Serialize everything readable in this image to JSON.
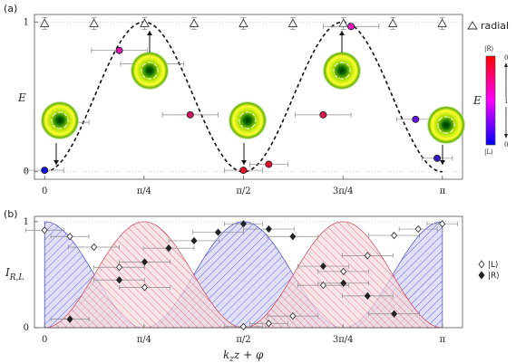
{
  "chart_data": [
    {
      "type": "scatter",
      "panel_label": "(a)",
      "ylabel": "E",
      "xlim": [
        -0.08,
        3.3
      ],
      "ylim": [
        -0.05,
        1.05
      ],
      "x_tick_values": [
        0,
        0.7854,
        1.5708,
        2.3562,
        3.1416
      ],
      "x_tick_labels": [
        "0",
        "π/4",
        "π/2",
        "3π/4",
        "π"
      ],
      "y_tick_values": [
        0,
        1
      ],
      "y_tick_labels": [
        "0",
        "1"
      ],
      "reference_lines": [
        0,
        1
      ],
      "radial_legend_label": "radial",
      "radial_points": {
        "x": [
          0,
          0.39,
          0.79,
          1.18,
          1.57,
          1.96,
          2.36,
          2.75,
          3.14
        ],
        "y": [
          0.99,
          0.99,
          0.99,
          0.99,
          0.99,
          0.99,
          0.99,
          0.99,
          0.99
        ],
        "yerr": [
          0.04,
          0.04,
          0.04,
          0.04,
          0.04,
          0.04,
          0.04,
          0.04,
          0.04
        ]
      },
      "curve_label": "sin²(2(k_z z + φ))",
      "measured_points": {
        "x": [
          0,
          0.2,
          0.59,
          0.85,
          1.15,
          1.57,
          1.77,
          2.2,
          2.42,
          2.93,
          3.1
        ],
        "y": [
          0.01,
          0.33,
          0.81,
          0.72,
          0.38,
          0.01,
          0.05,
          0.38,
          0.97,
          0.35,
          0.09
        ],
        "xerr": [
          0.15,
          0.15,
          0.22,
          0.25,
          0.22,
          0.15,
          0.15,
          0.22,
          0.22,
          0.15,
          0.12
        ],
        "colors": [
          "#1515d8",
          "#5a10c8",
          "#d215a8",
          "#a81ed8",
          "#d21560",
          "#e2102a",
          "#dd1030",
          "#d81545",
          "#e615c0",
          "#6010d8",
          "#3818c8"
        ]
      },
      "colorbar": {
        "label": "E",
        "ticks": [
          "0",
          "1",
          "0"
        ],
        "top_label": "|R⟩",
        "bottom_label": "|L⟩"
      }
    },
    {
      "type": "scatter",
      "panel_label": "(b)",
      "xlabel": "k_z z + φ",
      "ylabel": "I_{R,L}",
      "xlim": [
        -0.08,
        3.3
      ],
      "ylim": [
        0,
        1.05
      ],
      "x_tick_values": [
        0,
        0.7854,
        1.5708,
        2.3562,
        3.1416
      ],
      "x_tick_labels": [
        "0",
        "π/4",
        "π/2",
        "3π/4",
        "π"
      ],
      "y_tick_values": [
        0,
        1
      ],
      "y_tick_labels": [
        "0",
        "1"
      ],
      "legend": [
        "|L⟩",
        "|R⟩"
      ],
      "series": [
        {
          "name": "|L⟩",
          "marker": "open-diamond",
          "x": [
            0,
            0.2,
            0.39,
            0.59,
            0.79,
            1.57,
            1.77,
            1.96,
            2.2,
            2.36,
            2.55,
            2.76,
            2.95,
            3.14
          ],
          "y": [
            0.92,
            0.86,
            0.76,
            0.57,
            0.38,
            0.01,
            0.04,
            0.11,
            0.4,
            0.53,
            0.68,
            0.87,
            0.93,
            0.98
          ],
          "xerr": [
            0.15,
            0.15,
            0.2,
            0.2,
            0.2,
            0.15,
            0.15,
            0.2,
            0.2,
            0.2,
            0.2,
            0.2,
            0.15,
            0.12
          ]
        },
        {
          "name": "|R⟩",
          "marker": "filled-diamond",
          "x": [
            0.2,
            0.59,
            0.79,
            0.98,
            1.18,
            1.37,
            1.57,
            1.77,
            1.96,
            2.2,
            2.36,
            2.55,
            2.76
          ],
          "y": [
            0.08,
            0.45,
            0.62,
            0.75,
            0.82,
            0.9,
            0.98,
            0.93,
            0.86,
            0.58,
            0.42,
            0.3,
            0.13
          ],
          "xerr": [
            0.15,
            0.2,
            0.2,
            0.2,
            0.2,
            0.2,
            0.15,
            0.2,
            0.2,
            0.2,
            0.2,
            0.2,
            0.2
          ]
        }
      ],
      "theory": [
        {
          "name": "|L⟩",
          "function": "cos²(2x)",
          "fill": "#3b3bd0"
        },
        {
          "name": "|R⟩",
          "function": "sin²(2x)",
          "fill": "#d03b4a"
        }
      ]
    }
  ]
}
